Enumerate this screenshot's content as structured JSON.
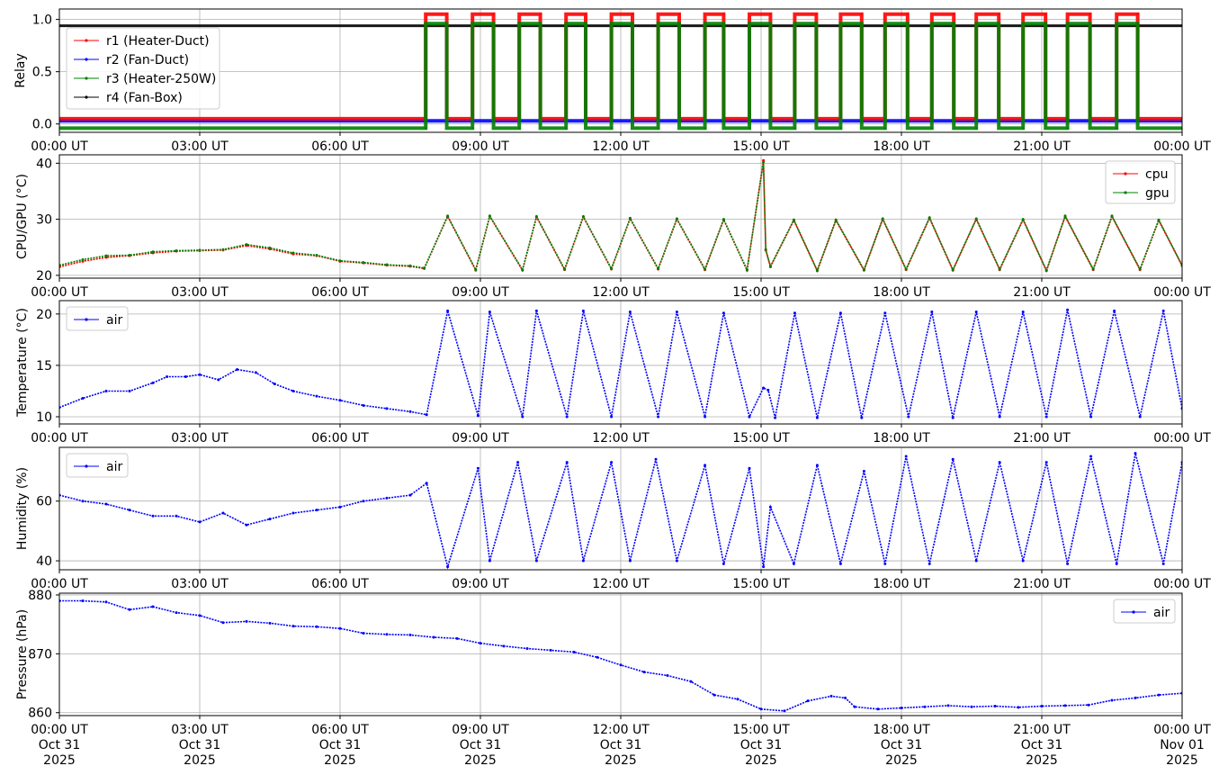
{
  "chart_data": [
    {
      "type": "line",
      "ylabel": "Relay",
      "ylim": [
        -0.08,
        1.1
      ],
      "yticks": [
        0.0,
        0.5,
        1.0
      ],
      "ytick_labels": [
        "0.0",
        "0.5",
        "1.0"
      ],
      "grid": true,
      "legend_position": "upper-left",
      "cycle_on_hours": [
        7.83,
        8.83,
        9.83,
        10.83,
        11.8,
        12.8,
        13.8,
        14.75,
        15.72,
        16.7,
        17.65,
        18.65,
        19.6,
        20.6,
        21.55,
        22.6
      ],
      "cycle_off_hours": [
        8.28,
        9.28,
        10.28,
        11.25,
        12.25,
        13.25,
        14.2,
        15.2,
        16.18,
        17.15,
        18.13,
        19.12,
        20.08,
        21.08,
        22.03,
        23.05
      ],
      "series": [
        {
          "name": "r1 (Heater-Duct)",
          "color": "#ff0000",
          "off": 0.05,
          "on": 1.05
        },
        {
          "name": "r2 (Fan-Duct)",
          "color": "#0000ff",
          "off": 0.03,
          "on": 0.03
        },
        {
          "name": "r3 (Heater-250W)",
          "color": "#008000",
          "off": -0.04,
          "on": 0.96
        },
        {
          "name": "r4 (Fan-Box)",
          "color": "#000000",
          "off": 0.94,
          "on": 0.94
        }
      ]
    },
    {
      "type": "line",
      "ylabel": "CPU/GPU (°C)",
      "ylim": [
        19.5,
        41.5
      ],
      "yticks": [
        20,
        30,
        40
      ],
      "ytick_labels": [
        "20",
        "30",
        "40"
      ],
      "grid": true,
      "legend_position": "upper-right",
      "series": [
        {
          "name": "cpu",
          "color": "#ff0000",
          "x": [
            0,
            0.5,
            1,
            1.5,
            2,
            2.5,
            3,
            3.5,
            4,
            4.5,
            5,
            5.5,
            6,
            6.5,
            7,
            7.5,
            7.8,
            8.3,
            8.9,
            9.2,
            9.9,
            10.2,
            10.8,
            11.2,
            11.8,
            12.2,
            12.8,
            13.2,
            13.8,
            14.2,
            14.7,
            15.05,
            15.1,
            15.2,
            15.7,
            16.2,
            16.6,
            17.2,
            17.6,
            18.1,
            18.6,
            19.1,
            19.6,
            20.1,
            20.6,
            21.1,
            21.5,
            22.1,
            22.5,
            23.1,
            23.5,
            24
          ],
          "y": [
            21.5,
            22.5,
            23.2,
            23.5,
            24,
            24.3,
            24.4,
            24.5,
            25.3,
            24.7,
            23.8,
            23.5,
            22.5,
            22.2,
            21.8,
            21.6,
            21.2,
            30.5,
            20.9,
            30.5,
            20.9,
            30.4,
            21.0,
            30.4,
            21.1,
            30.1,
            21.1,
            30.0,
            21.0,
            29.9,
            20.9,
            40.5,
            24.5,
            21.5,
            29.8,
            20.8,
            29.8,
            20.9,
            30.0,
            21.0,
            30.2,
            20.9,
            30.0,
            21.0,
            29.9,
            20.8,
            30.5,
            21.0,
            30.5,
            21.0,
            29.8,
            21.7
          ]
        },
        {
          "name": "gpu",
          "color": "#008000",
          "x": [
            0,
            0.5,
            1,
            1.5,
            2,
            2.5,
            3,
            3.5,
            4,
            4.5,
            5,
            5.5,
            6,
            6.5,
            7,
            7.5,
            7.8,
            8.3,
            8.9,
            9.2,
            9.9,
            10.2,
            10.8,
            11.2,
            11.8,
            12.2,
            12.8,
            13.2,
            13.8,
            14.2,
            14.7,
            15.05,
            15.1,
            15.2,
            15.7,
            16.2,
            16.6,
            17.2,
            17.6,
            18.1,
            18.6,
            19.1,
            19.6,
            20.1,
            20.6,
            21.1,
            21.5,
            22.1,
            22.5,
            23.1,
            23.5,
            24
          ],
          "y": [
            21.8,
            22.8,
            23.5,
            23.6,
            24.2,
            24.4,
            24.5,
            24.6,
            25.5,
            24.9,
            24.0,
            23.6,
            22.6,
            22.3,
            21.9,
            21.7,
            21.3,
            30.6,
            21.0,
            30.6,
            21.0,
            30.5,
            21.1,
            30.5,
            21.2,
            30.2,
            21.2,
            30.1,
            21.1,
            30.0,
            21.0,
            40.2,
            24.6,
            21.6,
            29.9,
            20.9,
            29.9,
            21.0,
            30.1,
            21.1,
            30.3,
            21.0,
            30.1,
            21.1,
            30.0,
            20.9,
            30.6,
            21.1,
            30.6,
            21.1,
            29.9,
            21.8
          ]
        }
      ]
    },
    {
      "type": "line",
      "ylabel": "Temperature (°C)",
      "ylim": [
        9.3,
        21.3
      ],
      "yticks": [
        10,
        15,
        20
      ],
      "ytick_labels": [
        "10",
        "15",
        "20"
      ],
      "grid": true,
      "legend_position": "upper-left",
      "series": [
        {
          "name": "air",
          "color": "#0000ff",
          "x": [
            0,
            0.5,
            1,
            1.5,
            2,
            2.3,
            2.7,
            3.0,
            3.4,
            3.8,
            4.2,
            4.6,
            5,
            5.5,
            6,
            6.5,
            7,
            7.5,
            7.85,
            8.3,
            8.95,
            9.2,
            9.9,
            10.2,
            10.85,
            11.2,
            11.8,
            12.2,
            12.8,
            13.2,
            13.8,
            14.2,
            14.75,
            15.05,
            15.15,
            15.3,
            15.72,
            16.2,
            16.7,
            17.15,
            17.65,
            18.15,
            18.65,
            19.1,
            19.6,
            20.1,
            20.6,
            21.1,
            21.55,
            22.05,
            22.55,
            23.1,
            23.6,
            24
          ],
          "y": [
            10.9,
            11.8,
            12.5,
            12.5,
            13.3,
            13.9,
            13.9,
            14.1,
            13.6,
            14.6,
            14.3,
            13.2,
            12.5,
            12.0,
            11.6,
            11.1,
            10.8,
            10.5,
            10.2,
            20.3,
            10.1,
            20.2,
            10.0,
            20.3,
            10.0,
            20.3,
            10.0,
            20.2,
            10.0,
            20.2,
            10.0,
            20.1,
            10.0,
            12.8,
            12.6,
            9.9,
            20.1,
            9.9,
            20.1,
            9.9,
            20.1,
            10.0,
            20.2,
            9.9,
            20.2,
            10.0,
            20.2,
            10.0,
            20.4,
            10.0,
            20.3,
            10.0,
            20.3,
            10.8
          ]
        }
      ]
    },
    {
      "type": "line",
      "ylabel": "Humidity (%)",
      "ylim": [
        37,
        78
      ],
      "yticks": [
        40,
        60
      ],
      "ytick_labels": [
        "40",
        "60"
      ],
      "grid": true,
      "legend_position": "upper-left",
      "series": [
        {
          "name": "air",
          "color": "#0000ff",
          "x": [
            0,
            0.5,
            1,
            1.5,
            2,
            2.5,
            3,
            3.5,
            4,
            4.5,
            5,
            5.5,
            6,
            6.5,
            7,
            7.5,
            7.85,
            8.3,
            8.95,
            9.2,
            9.8,
            10.2,
            10.85,
            11.2,
            11.8,
            12.2,
            12.75,
            13.2,
            13.8,
            14.2,
            14.75,
            15.05,
            15.2,
            15.7,
            16.2,
            16.7,
            17.2,
            17.65,
            18.1,
            18.6,
            19.1,
            19.6,
            20.1,
            20.6,
            21.1,
            21.55,
            22.05,
            22.6,
            23.0,
            23.6,
            24
          ],
          "y": [
            62,
            60,
            59,
            57,
            55,
            55,
            53,
            56,
            52,
            54,
            56,
            57,
            58,
            60,
            61,
            62,
            66,
            38,
            71,
            40,
            73,
            40,
            73,
            40,
            73,
            40,
            74,
            40,
            72,
            39,
            71,
            38,
            58,
            39,
            72,
            39,
            70,
            39,
            75,
            39,
            74,
            40,
            73,
            40,
            73,
            39,
            75,
            39,
            76,
            39,
            73
          ]
        }
      ]
    },
    {
      "type": "line",
      "ylabel": "Pressure (hPa)",
      "ylim": [
        859.5,
        880.3
      ],
      "yticks": [
        860,
        870,
        880
      ],
      "ytick_labels": [
        "860",
        "870",
        "880"
      ],
      "grid": true,
      "legend_position": "upper-right",
      "series": [
        {
          "name": "air",
          "color": "#0000ff",
          "x": [
            0,
            0.5,
            1,
            1.5,
            2,
            2.5,
            3,
            3.5,
            4,
            4.5,
            5,
            5.5,
            6,
            6.5,
            7,
            7.5,
            8,
            8.5,
            9,
            9.5,
            10,
            10.5,
            11,
            11.5,
            12,
            12.5,
            13,
            13.5,
            14,
            14.5,
            15,
            15.5,
            16,
            16.5,
            16.8,
            17,
            17.5,
            18,
            18.5,
            19,
            19.5,
            20,
            20.5,
            21,
            21.5,
            22,
            22.5,
            23,
            23.5,
            24
          ],
          "y": [
            879,
            879,
            878.8,
            877.5,
            878,
            877,
            876.5,
            875.3,
            875.5,
            875.2,
            874.7,
            874.6,
            874.3,
            873.5,
            873.3,
            873.2,
            872.8,
            872.6,
            871.8,
            871.3,
            870.9,
            870.6,
            870.3,
            869.4,
            868.1,
            866.9,
            866.3,
            865.3,
            863,
            862.3,
            860.6,
            860.3,
            862,
            862.8,
            862.5,
            861,
            860.6,
            860.8,
            861,
            861.2,
            861,
            861.1,
            860.9,
            861.1,
            861.2,
            861.3,
            862.1,
            862.5,
            863,
            863.3
          ]
        }
      ]
    }
  ],
  "x_axis": {
    "range_hours": [
      0,
      24
    ],
    "tick_hours": [
      0,
      3,
      6,
      9,
      12,
      15,
      18,
      21,
      24
    ],
    "tick_labels": [
      "00:00 UT",
      "03:00 UT",
      "06:00 UT",
      "09:00 UT",
      "12:00 UT",
      "15:00 UT",
      "18:00 UT",
      "21:00 UT",
      "00:00 UT"
    ],
    "bottom_date_line1": [
      "Oct 31",
      "Oct 31",
      "Oct 31",
      "Oct 31",
      "Oct 31",
      "Oct 31",
      "Oct 31",
      "Oct 31",
      "Nov 01"
    ],
    "bottom_date_line2": [
      "2025",
      "2025",
      "2025",
      "2025",
      "2025",
      "2025",
      "2025",
      "2025",
      "2025"
    ]
  }
}
